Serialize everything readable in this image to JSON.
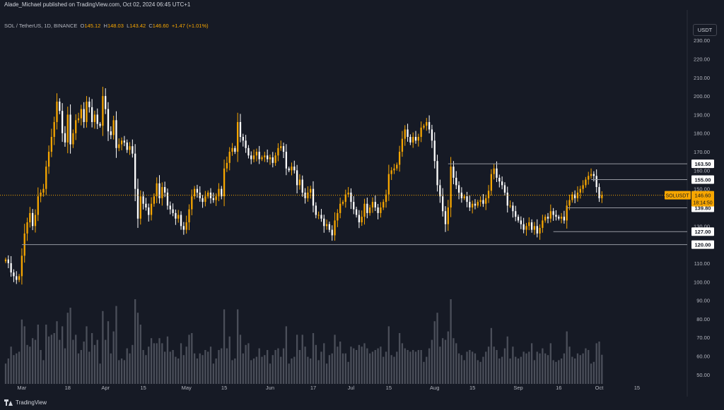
{
  "header": {
    "publisher": "Alade_Michael published on TradingView.com, Oct 02, 2024 06:45 UTC+1"
  },
  "legend": {
    "symbol": "SOL / TetherUS, 1D, BINANCE",
    "o_label": "O",
    "o": "145.12",
    "h_label": "H",
    "h": "148.03",
    "l_label": "L",
    "l": "143.42",
    "c_label": "C",
    "c": "146.60",
    "change": "+1.47 (+1.01%)"
  },
  "currency_button": "USDT",
  "footer": {
    "brand": "TradingView"
  },
  "colors": {
    "background": "#161a25",
    "up": "#f7a600",
    "down": "#ffffff",
    "axis_text": "#b2b5be",
    "level_line": "#9598a1"
  },
  "chart_data": {
    "type": "candlestick",
    "symbol": "SOLUSDT",
    "interval": "1D",
    "y_axis": {
      "scale": "linear",
      "min": 45,
      "max": 235,
      "ticks": [
        50,
        60,
        70,
        80,
        90,
        100,
        110,
        120,
        130,
        140,
        150,
        160,
        170,
        180,
        190,
        200,
        210,
        220,
        230
      ]
    },
    "x_axis": {
      "start_date": "2024-02-24",
      "end_date": "2024-10-20",
      "ticks": [
        {
          "label": "Mar",
          "date": "2024-03-01"
        },
        {
          "label": "18",
          "date": "2024-03-18"
        },
        {
          "label": "Apr",
          "date": "2024-04-01"
        },
        {
          "label": "15",
          "date": "2024-04-15"
        },
        {
          "label": "May",
          "date": "2024-05-01"
        },
        {
          "label": "15",
          "date": "2024-05-15"
        },
        {
          "label": "Jun",
          "date": "2024-06-01"
        },
        {
          "label": "17",
          "date": "2024-06-17"
        },
        {
          "label": "Jul",
          "date": "2024-07-01"
        },
        {
          "label": "15",
          "date": "2024-07-15"
        },
        {
          "label": "Aug",
          "date": "2024-08-01"
        },
        {
          "label": "15",
          "date": "2024-08-15"
        },
        {
          "label": "Sep",
          "date": "2024-09-01"
        },
        {
          "label": "16",
          "date": "2024-09-16"
        },
        {
          "label": "Oct",
          "date": "2024-10-01"
        },
        {
          "label": "15",
          "date": "2024-10-15"
        }
      ]
    },
    "levels": [
      {
        "label": "163.50",
        "value": 163.5,
        "from": "2024-08-06"
      },
      {
        "label": "155.00",
        "value": 155.0,
        "from": "2024-09-28"
      },
      {
        "label": "139.80",
        "value": 139.8,
        "from": "2024-09-19"
      },
      {
        "label": "127.00",
        "value": 127.0,
        "from": "2024-09-14"
      },
      {
        "label": "120.00",
        "value": 120.0,
        "from": "2024-03-01"
      }
    ],
    "last_price": {
      "symbol_label": "SOLUSDT",
      "price": "146.60",
      "countdown": "18:14:50",
      "value": 146.6
    },
    "volume_panel": {
      "shown": true,
      "moving_average": true
    },
    "closes": [
      {
        "d": "2024-02-24",
        "v": 112
      },
      {
        "d": "2024-02-25",
        "v": 110
      },
      {
        "d": "2024-02-26",
        "v": 105
      },
      {
        "d": "2024-02-27",
        "v": 103
      },
      {
        "d": "2024-02-28",
        "v": 101
      },
      {
        "d": "2024-02-29",
        "v": 103
      },
      {
        "d": "2024-03-01",
        "v": 114
      },
      {
        "d": "2024-03-02",
        "v": 126
      },
      {
        "d": "2024-03-03",
        "v": 132
      },
      {
        "d": "2024-03-04",
        "v": 137
      },
      {
        "d": "2024-03-05",
        "v": 130
      },
      {
        "d": "2024-03-06",
        "v": 136
      },
      {
        "d": "2024-03-07",
        "v": 146
      },
      {
        "d": "2024-03-08",
        "v": 148
      },
      {
        "d": "2024-03-09",
        "v": 150
      },
      {
        "d": "2024-03-10",
        "v": 162
      },
      {
        "d": "2024-03-11",
        "v": 170
      },
      {
        "d": "2024-03-12",
        "v": 178
      },
      {
        "d": "2024-03-13",
        "v": 186
      },
      {
        "d": "2024-03-14",
        "v": 197
      },
      {
        "d": "2024-03-15",
        "v": 192
      },
      {
        "d": "2024-03-16",
        "v": 180
      },
      {
        "d": "2024-03-17",
        "v": 175
      },
      {
        "d": "2024-03-18",
        "v": 190
      },
      {
        "d": "2024-03-19",
        "v": 174
      },
      {
        "d": "2024-03-20",
        "v": 180
      },
      {
        "d": "2024-03-21",
        "v": 187
      },
      {
        "d": "2024-03-22",
        "v": 188
      },
      {
        "d": "2024-03-23",
        "v": 193
      },
      {
        "d": "2024-03-24",
        "v": 186
      },
      {
        "d": "2024-03-25",
        "v": 197
      },
      {
        "d": "2024-03-26",
        "v": 194
      },
      {
        "d": "2024-03-27",
        "v": 186
      },
      {
        "d": "2024-03-28",
        "v": 190
      },
      {
        "d": "2024-03-29",
        "v": 185
      },
      {
        "d": "2024-03-30",
        "v": 184
      },
      {
        "d": "2024-03-31",
        "v": 200
      },
      {
        "d": "2024-04-01",
        "v": 193
      },
      {
        "d": "2024-04-02",
        "v": 181
      },
      {
        "d": "2024-04-03",
        "v": 179
      },
      {
        "d": "2024-04-04",
        "v": 187
      },
      {
        "d": "2024-04-05",
        "v": 172
      },
      {
        "d": "2024-04-06",
        "v": 174
      },
      {
        "d": "2024-04-07",
        "v": 176
      },
      {
        "d": "2024-04-08",
        "v": 175
      },
      {
        "d": "2024-04-09",
        "v": 171
      },
      {
        "d": "2024-04-10",
        "v": 173
      },
      {
        "d": "2024-04-11",
        "v": 169
      },
      {
        "d": "2024-04-12",
        "v": 150
      },
      {
        "d": "2024-04-13",
        "v": 134
      },
      {
        "d": "2024-04-14",
        "v": 146
      },
      {
        "d": "2024-04-15",
        "v": 142
      },
      {
        "d": "2024-04-16",
        "v": 140
      },
      {
        "d": "2024-04-17",
        "v": 136
      },
      {
        "d": "2024-04-18",
        "v": 142
      },
      {
        "d": "2024-04-19",
        "v": 146
      },
      {
        "d": "2024-04-20",
        "v": 153
      },
      {
        "d": "2024-04-21",
        "v": 145
      },
      {
        "d": "2024-04-22",
        "v": 151
      },
      {
        "d": "2024-04-23",
        "v": 148
      },
      {
        "d": "2024-04-24",
        "v": 141
      },
      {
        "d": "2024-04-25",
        "v": 139
      },
      {
        "d": "2024-04-26",
        "v": 137
      },
      {
        "d": "2024-04-27",
        "v": 134
      },
      {
        "d": "2024-04-28",
        "v": 136
      },
      {
        "d": "2024-04-29",
        "v": 130
      },
      {
        "d": "2024-04-30",
        "v": 128
      },
      {
        "d": "2024-05-01",
        "v": 132
      },
      {
        "d": "2024-05-02",
        "v": 139
      },
      {
        "d": "2024-05-03",
        "v": 146
      },
      {
        "d": "2024-05-04",
        "v": 150
      },
      {
        "d": "2024-05-05",
        "v": 148
      },
      {
        "d": "2024-05-06",
        "v": 145
      },
      {
        "d": "2024-05-07",
        "v": 143
      },
      {
        "d": "2024-05-08",
        "v": 146
      },
      {
        "d": "2024-05-09",
        "v": 148
      },
      {
        "d": "2024-05-10",
        "v": 145
      },
      {
        "d": "2024-05-11",
        "v": 144
      },
      {
        "d": "2024-05-12",
        "v": 146
      },
      {
        "d": "2024-05-13",
        "v": 150
      },
      {
        "d": "2024-05-14",
        "v": 146
      },
      {
        "d": "2024-05-15",
        "v": 161
      },
      {
        "d": "2024-05-16",
        "v": 164
      },
      {
        "d": "2024-05-17",
        "v": 170
      },
      {
        "d": "2024-05-18",
        "v": 172
      },
      {
        "d": "2024-05-19",
        "v": 170
      },
      {
        "d": "2024-05-20",
        "v": 186
      },
      {
        "d": "2024-05-21",
        "v": 178
      },
      {
        "d": "2024-05-22",
        "v": 176
      },
      {
        "d": "2024-05-23",
        "v": 172
      },
      {
        "d": "2024-05-24",
        "v": 168
      },
      {
        "d": "2024-05-25",
        "v": 166
      },
      {
        "d": "2024-05-26",
        "v": 168
      },
      {
        "d": "2024-05-27",
        "v": 170
      },
      {
        "d": "2024-05-28",
        "v": 166
      },
      {
        "d": "2024-05-29",
        "v": 167
      },
      {
        "d": "2024-05-30",
        "v": 168
      },
      {
        "d": "2024-05-31",
        "v": 166
      },
      {
        "d": "2024-06-01",
        "v": 167
      },
      {
        "d": "2024-06-02",
        "v": 164
      },
      {
        "d": "2024-06-03",
        "v": 168
      },
      {
        "d": "2024-06-04",
        "v": 172
      },
      {
        "d": "2024-06-05",
        "v": 173
      },
      {
        "d": "2024-06-06",
        "v": 170
      },
      {
        "d": "2024-06-07",
        "v": 161
      },
      {
        "d": "2024-06-08",
        "v": 160
      },
      {
        "d": "2024-06-09",
        "v": 162
      },
      {
        "d": "2024-06-10",
        "v": 160
      },
      {
        "d": "2024-06-11",
        "v": 152
      },
      {
        "d": "2024-06-12",
        "v": 155
      },
      {
        "d": "2024-06-13",
        "v": 148
      },
      {
        "d": "2024-06-14",
        "v": 145
      },
      {
        "d": "2024-06-15",
        "v": 148
      },
      {
        "d": "2024-06-16",
        "v": 150
      },
      {
        "d": "2024-06-17",
        "v": 141
      },
      {
        "d": "2024-06-18",
        "v": 136
      },
      {
        "d": "2024-06-19",
        "v": 136
      },
      {
        "d": "2024-06-20",
        "v": 134
      },
      {
        "d": "2024-06-21",
        "v": 130
      },
      {
        "d": "2024-06-22",
        "v": 131
      },
      {
        "d": "2024-06-23",
        "v": 128
      },
      {
        "d": "2024-06-24",
        "v": 125
      },
      {
        "d": "2024-06-25",
        "v": 133
      },
      {
        "d": "2024-06-26",
        "v": 137
      },
      {
        "d": "2024-06-27",
        "v": 142
      },
      {
        "d": "2024-06-28",
        "v": 143
      },
      {
        "d": "2024-06-29",
        "v": 147
      },
      {
        "d": "2024-06-30",
        "v": 148
      },
      {
        "d": "2024-07-01",
        "v": 143
      },
      {
        "d": "2024-07-02",
        "v": 139
      },
      {
        "d": "2024-07-03",
        "v": 136
      },
      {
        "d": "2024-07-04",
        "v": 132
      },
      {
        "d": "2024-07-05",
        "v": 135
      },
      {
        "d": "2024-07-06",
        "v": 142
      },
      {
        "d": "2024-07-07",
        "v": 137
      },
      {
        "d": "2024-07-08",
        "v": 140
      },
      {
        "d": "2024-07-09",
        "v": 143
      },
      {
        "d": "2024-07-10",
        "v": 140
      },
      {
        "d": "2024-07-11",
        "v": 137
      },
      {
        "d": "2024-07-12",
        "v": 140
      },
      {
        "d": "2024-07-13",
        "v": 143
      },
      {
        "d": "2024-07-14",
        "v": 147
      },
      {
        "d": "2024-07-15",
        "v": 158
      },
      {
        "d": "2024-07-16",
        "v": 160
      },
      {
        "d": "2024-07-17",
        "v": 161
      },
      {
        "d": "2024-07-18",
        "v": 163
      },
      {
        "d": "2024-07-19",
        "v": 170
      },
      {
        "d": "2024-07-20",
        "v": 177
      },
      {
        "d": "2024-07-21",
        "v": 182
      },
      {
        "d": "2024-07-22",
        "v": 178
      },
      {
        "d": "2024-07-23",
        "v": 175
      },
      {
        "d": "2024-07-24",
        "v": 178
      },
      {
        "d": "2024-07-25",
        "v": 176
      },
      {
        "d": "2024-07-26",
        "v": 178
      },
      {
        "d": "2024-07-27",
        "v": 183
      },
      {
        "d": "2024-07-28",
        "v": 184
      },
      {
        "d": "2024-07-29",
        "v": 186
      },
      {
        "d": "2024-07-30",
        "v": 182
      },
      {
        "d": "2024-07-31",
        "v": 176
      },
      {
        "d": "2024-08-01",
        "v": 165
      },
      {
        "d": "2024-08-02",
        "v": 152
      },
      {
        "d": "2024-08-03",
        "v": 146
      },
      {
        "d": "2024-08-04",
        "v": 138
      },
      {
        "d": "2024-08-05",
        "v": 131
      },
      {
        "d": "2024-08-06",
        "v": 140
      },
      {
        "d": "2024-08-07",
        "v": 162
      },
      {
        "d": "2024-08-08",
        "v": 156
      },
      {
        "d": "2024-08-09",
        "v": 152
      },
      {
        "d": "2024-08-10",
        "v": 148
      },
      {
        "d": "2024-08-11",
        "v": 145
      },
      {
        "d": "2024-08-12",
        "v": 146
      },
      {
        "d": "2024-08-13",
        "v": 143
      },
      {
        "d": "2024-08-14",
        "v": 140
      },
      {
        "d": "2024-08-15",
        "v": 142
      },
      {
        "d": "2024-08-16",
        "v": 141
      },
      {
        "d": "2024-08-17",
        "v": 143
      },
      {
        "d": "2024-08-18",
        "v": 144
      },
      {
        "d": "2024-08-19",
        "v": 142
      },
      {
        "d": "2024-08-20",
        "v": 145
      },
      {
        "d": "2024-08-21",
        "v": 149
      },
      {
        "d": "2024-08-22",
        "v": 158
      },
      {
        "d": "2024-08-23",
        "v": 161
      },
      {
        "d": "2024-08-24",
        "v": 156
      },
      {
        "d": "2024-08-25",
        "v": 154
      },
      {
        "d": "2024-08-26",
        "v": 152
      },
      {
        "d": "2024-08-27",
        "v": 148
      },
      {
        "d": "2024-08-28",
        "v": 141
      },
      {
        "d": "2024-08-29",
        "v": 141
      },
      {
        "d": "2024-08-30",
        "v": 138
      },
      {
        "d": "2024-08-31",
        "v": 135
      },
      {
        "d": "2024-09-01",
        "v": 133
      },
      {
        "d": "2024-09-02",
        "v": 131
      },
      {
        "d": "2024-09-03",
        "v": 128
      },
      {
        "d": "2024-09-04",
        "v": 130
      },
      {
        "d": "2024-09-05",
        "v": 132
      },
      {
        "d": "2024-09-06",
        "v": 128
      },
      {
        "d": "2024-09-07",
        "v": 130
      },
      {
        "d": "2024-09-08",
        "v": 126
      },
      {
        "d": "2024-09-09",
        "v": 129
      },
      {
        "d": "2024-09-10",
        "v": 133
      },
      {
        "d": "2024-09-11",
        "v": 135
      },
      {
        "d": "2024-09-12",
        "v": 134
      },
      {
        "d": "2024-09-13",
        "v": 138
      },
      {
        "d": "2024-09-14",
        "v": 136
      },
      {
        "d": "2024-09-15",
        "v": 135
      },
      {
        "d": "2024-09-16",
        "v": 134
      },
      {
        "d": "2024-09-17",
        "v": 135
      },
      {
        "d": "2024-09-18",
        "v": 133
      },
      {
        "d": "2024-09-19",
        "v": 141
      },
      {
        "d": "2024-09-20",
        "v": 144
      },
      {
        "d": "2024-09-21",
        "v": 147
      },
      {
        "d": "2024-09-22",
        "v": 145
      },
      {
        "d": "2024-09-23",
        "v": 148
      },
      {
        "d": "2024-09-24",
        "v": 150
      },
      {
        "d": "2024-09-25",
        "v": 152
      },
      {
        "d": "2024-09-26",
        "v": 155
      },
      {
        "d": "2024-09-27",
        "v": 157
      },
      {
        "d": "2024-09-28",
        "v": 158
      },
      {
        "d": "2024-09-29",
        "v": 157
      },
      {
        "d": "2024-09-30",
        "v": 151
      },
      {
        "d": "2024-10-01",
        "v": 145
      },
      {
        "d": "2024-10-02",
        "v": 146.6
      }
    ],
    "volume_scale_max": 100
  }
}
